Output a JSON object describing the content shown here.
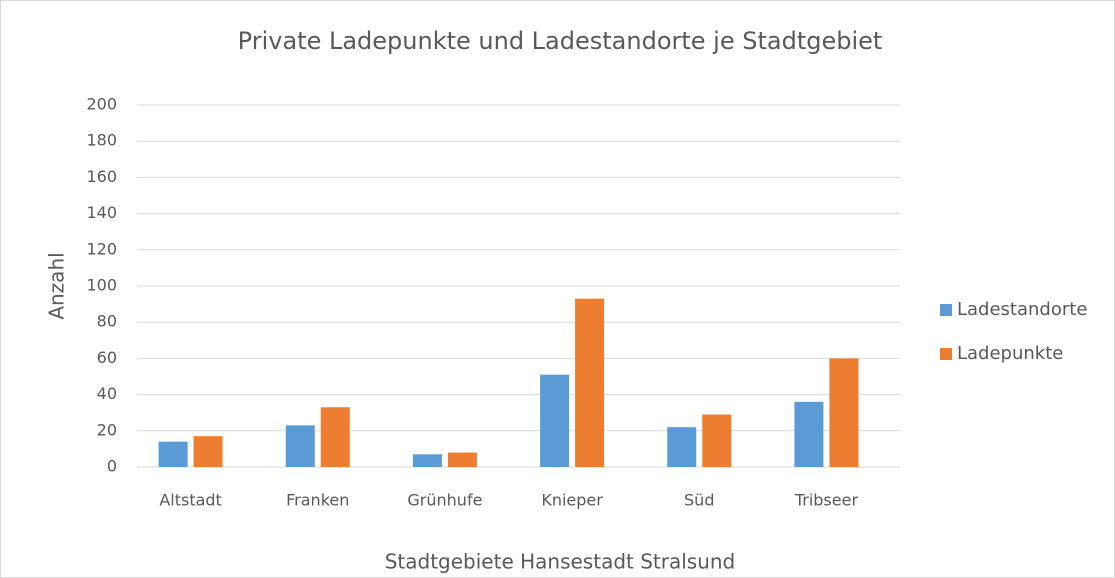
{
  "chart_data": {
    "type": "bar",
    "title": "Private Ladepunkte und Ladestandorte je Stadtgebiet",
    "x_label": "Stadtgebiete Hansestadt Stralsund",
    "y_label": "Anzahl",
    "categories": [
      "Altstadt",
      "Franken",
      "Grünhufe",
      "Knieper",
      "Süd",
      "Tribseer"
    ],
    "series": [
      {
        "name": "Ladestandorte",
        "color": "#5b9bd5",
        "values": [
          14,
          23,
          7,
          51,
          22,
          36
        ]
      },
      {
        "name": "Ladepunkte",
        "color": "#ed7d31",
        "values": [
          17,
          33,
          8,
          93,
          29,
          60
        ]
      }
    ],
    "ylim": [
      0,
      200
    ],
    "yticks": [
      0,
      20,
      40,
      60,
      80,
      100,
      120,
      140,
      160,
      180,
      200
    ],
    "grid": true,
    "legend": "right"
  }
}
